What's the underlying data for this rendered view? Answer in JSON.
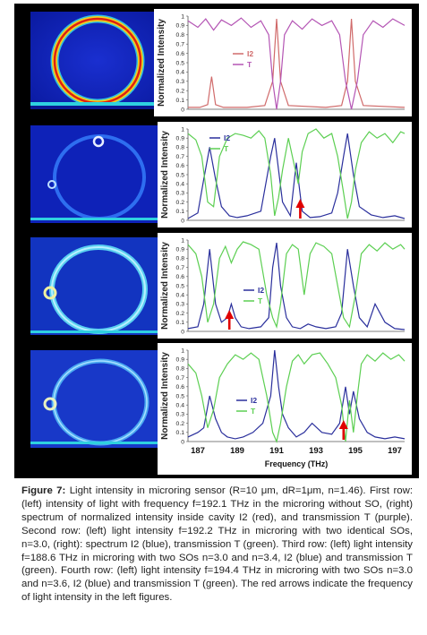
{
  "figure": {
    "y_axis_label": "Normalized Intensity",
    "x_axis_label": "Frequency (THz)",
    "y_tick_labels": [
      "0",
      "0.1",
      "0.2",
      "0.3",
      "0.4",
      "0.5",
      "0.6",
      "0.7",
      "0.8",
      "0.9",
      "1"
    ],
    "x_tick_labels": [
      "187",
      "189",
      "191",
      "193",
      "195",
      "197"
    ]
  },
  "colors": {
    "row1_I2": "#d06a6a",
    "row1_T": "#b455b4",
    "I2": "#2a2f9c",
    "T": "#5ccf52",
    "arrow": "#e00000"
  },
  "chart_data": [
    {
      "type": "line",
      "ylabel": "Normalized Intensity",
      "ylim": [
        0,
        1
      ],
      "xlim": [
        186.5,
        197.5
      ],
      "series": [
        {
          "name": "I2",
          "x": [
            186.5,
            187.1,
            187.5,
            187.7,
            187.9,
            188.3,
            189.5,
            190.4,
            190.8,
            191.0,
            191.2,
            191.6,
            193.5,
            194.3,
            194.6,
            194.8,
            195.0,
            195.4,
            197.5
          ],
          "values": [
            0.02,
            0.02,
            0.05,
            0.35,
            0.05,
            0.02,
            0.02,
            0.04,
            0.3,
            0.97,
            0.3,
            0.04,
            0.02,
            0.04,
            0.3,
            0.97,
            0.3,
            0.04,
            0.02
          ]
        },
        {
          "name": "T",
          "x": [
            186.5,
            187.0,
            187.4,
            187.8,
            188.2,
            188.7,
            189.2,
            189.7,
            190.2,
            190.6,
            190.8,
            191.0,
            191.2,
            191.4,
            191.8,
            192.3,
            192.8,
            193.3,
            193.8,
            194.2,
            194.5,
            194.8,
            195.1,
            195.4,
            195.9,
            196.4,
            196.9,
            197.5
          ],
          "values": [
            0.95,
            0.88,
            0.97,
            0.85,
            0.96,
            0.9,
            0.98,
            0.88,
            0.95,
            0.8,
            0.3,
            0.0,
            0.3,
            0.8,
            0.95,
            0.86,
            0.97,
            0.9,
            0.95,
            0.8,
            0.3,
            0.0,
            0.3,
            0.8,
            0.95,
            0.88,
            0.97,
            0.9
          ]
        }
      ]
    },
    {
      "type": "line",
      "ylabel": "Normalized Intensity",
      "ylim": [
        0,
        1
      ],
      "xlim": [
        186.5,
        197.5
      ],
      "series": [
        {
          "name": "I2",
          "x": [
            186.5,
            187.0,
            187.3,
            187.6,
            187.9,
            188.2,
            188.6,
            189.0,
            189.5,
            190.2,
            190.7,
            190.9,
            191.1,
            191.3,
            191.7,
            192.0,
            192.3,
            192.7,
            193.2,
            193.8,
            194.1,
            194.4,
            194.6,
            194.9,
            195.2,
            195.8,
            196.4,
            197.0,
            197.5
          ],
          "values": [
            0.02,
            0.08,
            0.45,
            0.8,
            0.45,
            0.15,
            0.05,
            0.03,
            0.05,
            0.1,
            0.7,
            0.9,
            0.55,
            0.2,
            0.05,
            0.63,
            0.1,
            0.03,
            0.04,
            0.08,
            0.3,
            0.7,
            0.95,
            0.5,
            0.15,
            0.06,
            0.03,
            0.05,
            0.02
          ]
        },
        {
          "name": "T",
          "x": [
            186.5,
            186.9,
            187.2,
            187.5,
            187.8,
            188.1,
            188.5,
            188.9,
            189.3,
            189.7,
            190.1,
            190.4,
            190.7,
            190.9,
            191.1,
            191.3,
            191.6,
            191.9,
            192.1,
            192.3,
            192.6,
            193.0,
            193.4,
            193.8,
            194.1,
            194.4,
            194.6,
            194.8,
            195.0,
            195.3,
            195.7,
            196.1,
            196.5,
            196.9,
            197.3,
            197.5
          ],
          "values": [
            0.95,
            0.88,
            0.7,
            0.2,
            0.15,
            0.7,
            0.9,
            0.95,
            0.93,
            0.9,
            0.98,
            0.9,
            0.5,
            0.05,
            0.25,
            0.55,
            0.9,
            0.6,
            0.4,
            0.75,
            0.95,
            1.0,
            0.9,
            0.95,
            0.7,
            0.3,
            0.02,
            0.2,
            0.55,
            0.85,
            0.97,
            0.9,
            0.95,
            0.85,
            0.97,
            0.95
          ]
        }
      ]
    },
    {
      "type": "line",
      "ylabel": "Normalized Intensity",
      "ylim": [
        0,
        1
      ],
      "xlim": [
        186.5,
        197.5
      ],
      "series": [
        {
          "name": "I2",
          "x": [
            186.5,
            187.0,
            187.3,
            187.6,
            187.9,
            188.2,
            188.5,
            188.7,
            188.9,
            189.2,
            189.6,
            190.2,
            190.6,
            190.8,
            191.0,
            191.2,
            191.5,
            191.8,
            192.2,
            192.6,
            193.0,
            193.5,
            194.0,
            194.3,
            194.6,
            194.9,
            195.2,
            195.6,
            196.0,
            196.5,
            197.0,
            197.5
          ],
          "values": [
            0.03,
            0.05,
            0.3,
            0.9,
            0.3,
            0.1,
            0.15,
            0.3,
            0.15,
            0.05,
            0.03,
            0.05,
            0.15,
            0.7,
            0.97,
            0.5,
            0.15,
            0.05,
            0.03,
            0.08,
            0.05,
            0.03,
            0.05,
            0.2,
            0.9,
            0.5,
            0.15,
            0.05,
            0.3,
            0.1,
            0.03,
            0.02
          ]
        },
        {
          "name": "T",
          "x": [
            186.5,
            186.9,
            187.2,
            187.5,
            187.8,
            188.1,
            188.4,
            188.7,
            189.0,
            189.3,
            189.7,
            190.1,
            190.5,
            190.8,
            191.0,
            191.2,
            191.5,
            191.8,
            192.1,
            192.4,
            192.7,
            193.0,
            193.4,
            193.8,
            194.1,
            194.4,
            194.7,
            195.0,
            195.3,
            195.7,
            196.1,
            196.5,
            196.9,
            197.3,
            197.5
          ],
          "values": [
            0.95,
            0.85,
            0.6,
            0.1,
            0.3,
            0.8,
            0.93,
            0.75,
            0.9,
            0.98,
            0.95,
            0.9,
            0.4,
            0.15,
            0.05,
            0.3,
            0.85,
            0.95,
            0.9,
            0.4,
            0.85,
            0.97,
            0.93,
            0.85,
            0.5,
            0.15,
            0.05,
            0.4,
            0.85,
            0.95,
            0.88,
            0.97,
            0.9,
            0.95,
            0.9
          ]
        }
      ]
    },
    {
      "type": "line",
      "ylabel": "Normalized Intensity",
      "xlabel": "Frequency (THz)",
      "ylim": [
        0,
        1
      ],
      "xlim": [
        186.5,
        197.5
      ],
      "x_ticks": [
        187,
        189,
        191,
        193,
        195,
        197
      ],
      "series": [
        {
          "name": "I2",
          "x": [
            186.5,
            187.0,
            187.3,
            187.6,
            187.9,
            188.2,
            188.5,
            188.9,
            189.3,
            189.8,
            190.3,
            190.7,
            190.9,
            191.1,
            191.3,
            191.6,
            192.0,
            192.4,
            192.8,
            193.3,
            193.8,
            194.2,
            194.5,
            194.7,
            194.9,
            195.2,
            195.6,
            196.0,
            196.5,
            197.0,
            197.5
          ],
          "values": [
            0.05,
            0.1,
            0.15,
            0.5,
            0.25,
            0.1,
            0.05,
            0.03,
            0.05,
            0.1,
            0.2,
            0.5,
            1.0,
            0.6,
            0.3,
            0.15,
            0.05,
            0.1,
            0.2,
            0.1,
            0.08,
            0.2,
            0.6,
            0.3,
            0.55,
            0.25,
            0.1,
            0.05,
            0.03,
            0.05,
            0.03
          ]
        },
        {
          "name": "T",
          "x": [
            186.5,
            186.9,
            187.2,
            187.5,
            187.8,
            188.1,
            188.5,
            188.9,
            189.3,
            189.7,
            190.1,
            190.5,
            190.8,
            191.0,
            191.2,
            191.5,
            191.8,
            192.1,
            192.4,
            192.8,
            193.2,
            193.6,
            194.0,
            194.3,
            194.5,
            194.7,
            194.9,
            195.1,
            195.3,
            195.6,
            196.0,
            196.4,
            196.8,
            197.2,
            197.5
          ],
          "values": [
            0.85,
            0.75,
            0.5,
            0.15,
            0.35,
            0.7,
            0.85,
            0.95,
            0.9,
            0.97,
            0.9,
            0.5,
            0.1,
            0.0,
            0.2,
            0.6,
            0.88,
            0.95,
            0.85,
            0.95,
            0.97,
            0.85,
            0.7,
            0.4,
            0.0,
            0.45,
            0.1,
            0.5,
            0.85,
            0.95,
            0.88,
            0.97,
            0.9,
            0.95,
            0.88
          ]
        }
      ]
    }
  ],
  "rows": [
    {
      "legend_I2": "I2",
      "legend_T": "T"
    },
    {
      "legend_I2": "I2",
      "legend_T": "T",
      "arrow_x": 192.2
    },
    {
      "legend_I2": "I2",
      "legend_T": "T",
      "arrow_x": 188.6
    },
    {
      "legend_I2": "I2",
      "legend_T": "T",
      "arrow_x": 194.4
    }
  ],
  "caption": {
    "label": "Figure 7:",
    "text": "Light intensity in microring sensor (R=10 μm, dR=1μm, n=1.46). First row: (left) intensity of light with frequency f=192.1 THz in the microring without SO, (right) spectrum of normalized intensity inside cavity I2 (red), and transmission T (purple). Second row: (left) light intensity f=192.2 THz in microring with two identical SOs, n=3.0, (right): spectrum I2 (blue), transmission T (green). Third row: (left) light intensity f=188.6 THz in microring with two SOs n=3.0 and n=3.4, I2 (blue) and transmission T (green). Fourth row: (left) light intensity f=194.4 THz in microring with two SOs n=3.0 and n=3.6, I2 (blue) and transmission T (green). The red arrows indicate the frequency of light intensity in the left figures."
  }
}
